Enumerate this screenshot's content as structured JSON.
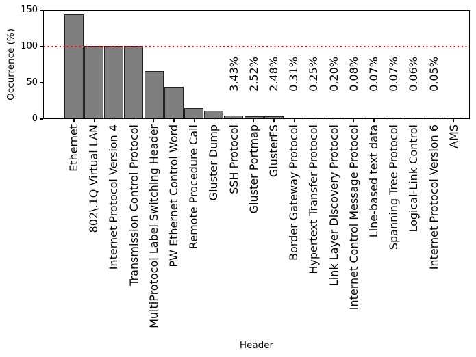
{
  "figure": {
    "background": "#ffffff"
  },
  "chart_data": {
    "type": "bar",
    "title": "",
    "xlabel": "Header",
    "ylabel": "Occurrence (%)",
    "ylim": [
      0,
      150
    ],
    "yticks": [
      0,
      50,
      100,
      150
    ],
    "grid": false,
    "legend": null,
    "x_tick_label_rotation_deg": 90,
    "bar_fill_color": "#7f7f7f",
    "bar_edge_color": "#222222",
    "reference_line": {
      "y": 100,
      "color": "#ff0000",
      "style": "dotted"
    },
    "categories": [
      "Ethernet",
      "802\\.1Q Virtual LAN",
      "Internet Protocol Version 4",
      "Transmission Control Protocol",
      "MultiProtocol Label Switching Header",
      "PW Ethernet Control Word",
      "Remote Procedure Call",
      "Gluster Dump",
      "SSH Protocol",
      "Gluster Portmap",
      "GlusterFS",
      "Border Gateway Protocol",
      "Hypertext Transfer Protocol",
      "Link Layer Discovery Protocol",
      "Internet Control Message Protocol",
      "Line-based text data",
      "Spanning Tree Protocol",
      "Logical-Link Control",
      "Internet Protocol Version 6",
      "AMS"
    ],
    "values": [
      143,
      100,
      100,
      100,
      65,
      43,
      14,
      10,
      3.43,
      2.52,
      2.48,
      0.31,
      0.25,
      0.2,
      0.08,
      0.07,
      0.07,
      0.06,
      0.05,
      0.01
    ],
    "value_labels": [
      null,
      null,
      null,
      null,
      null,
      null,
      null,
      null,
      "3.43%",
      "2.52%",
      "2.48%",
      "0.31%",
      "0.25%",
      "0.20%",
      "0.08%",
      "0.07%",
      "0.07%",
      "0.06%",
      "0.05%",
      null
    ]
  }
}
